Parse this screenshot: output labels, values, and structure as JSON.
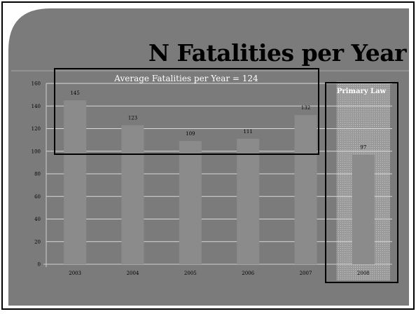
{
  "slide": {
    "title": "N Fatalities per Year"
  },
  "chart_data": {
    "type": "bar",
    "title": "N Fatalities per Year",
    "xlabel": "",
    "ylabel": "",
    "categories": [
      "2003",
      "2004",
      "2005",
      "2006",
      "2007",
      "2008"
    ],
    "values": [
      145,
      123,
      109,
      111,
      132,
      97
    ],
    "ylim": [
      0,
      160
    ],
    "yticks": [
      0,
      20,
      40,
      60,
      80,
      100,
      120,
      140,
      160
    ],
    "grid": true,
    "legend": "none",
    "annotations": [
      {
        "text": "Average Fatalities per Year = 124",
        "spans": [
          "2003",
          "2007"
        ]
      },
      {
        "text": "Primary Law",
        "spans": [
          "2008"
        ]
      }
    ]
  },
  "colors": {
    "background": "#7b7b7b",
    "bar": "#8b8b8b",
    "grid": "#d8d8d8",
    "frame": "#000000"
  }
}
